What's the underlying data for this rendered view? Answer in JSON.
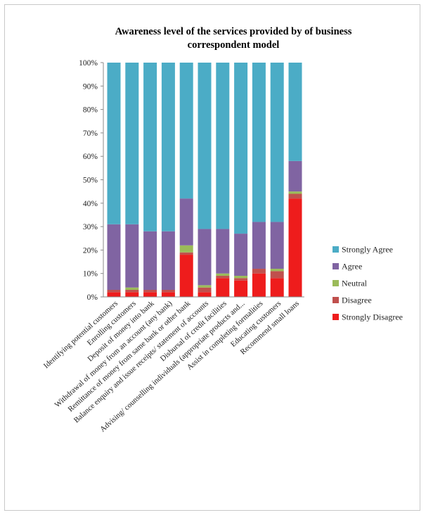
{
  "chart_data": {
    "type": "bar",
    "stacked": true,
    "percent_stacked": true,
    "title_line1": "Awareness level of the services provided by  of business",
    "title_line2": "correspondent model",
    "xlabel": "",
    "ylabel": "",
    "ylim": [
      0,
      100
    ],
    "y_ticks": [
      "0%",
      "10%",
      "20%",
      "30%",
      "40%",
      "50%",
      "60%",
      "70%",
      "80%",
      "90%",
      "100%"
    ],
    "grid": false,
    "legend_position": "right",
    "categories": [
      "Identifying potential customers",
      "Enrolling customers",
      "Deposit of money into bank",
      "Withdrawal of money from an account (any bank)",
      "Remittance of money from same bank or other bank",
      "Balance enquiry and issue receipts/ statement of accounts",
      "Disbursal of credit facilities",
      "Advising/ counselling individuals (appropriate products and...",
      "Assist in completing formalities",
      "Educating customers",
      "Recommend small loans"
    ],
    "series": [
      {
        "name": "Strongly Disagree",
        "color": "#ee1c1c",
        "values": [
          2,
          2,
          2,
          2,
          18,
          2,
          8,
          7,
          10,
          8,
          42
        ]
      },
      {
        "name": "Disagree",
        "color": "#c0504d",
        "values": [
          1,
          1,
          1,
          1,
          1,
          2,
          1,
          1,
          2,
          3,
          2
        ]
      },
      {
        "name": "Neutral",
        "color": "#9bbb59",
        "values": [
          0,
          1,
          0,
          0,
          3,
          1,
          1,
          1,
          0,
          1,
          1
        ]
      },
      {
        "name": "Agree",
        "color": "#8064a2",
        "values": [
          28,
          27,
          25,
          25,
          20,
          24,
          19,
          18,
          20,
          20,
          13
        ]
      },
      {
        "name": "Strongly Agree",
        "color": "#4bacc6",
        "values": [
          69,
          69,
          72,
          72,
          58,
          71,
          71,
          73,
          68,
          68,
          42
        ]
      }
    ]
  }
}
